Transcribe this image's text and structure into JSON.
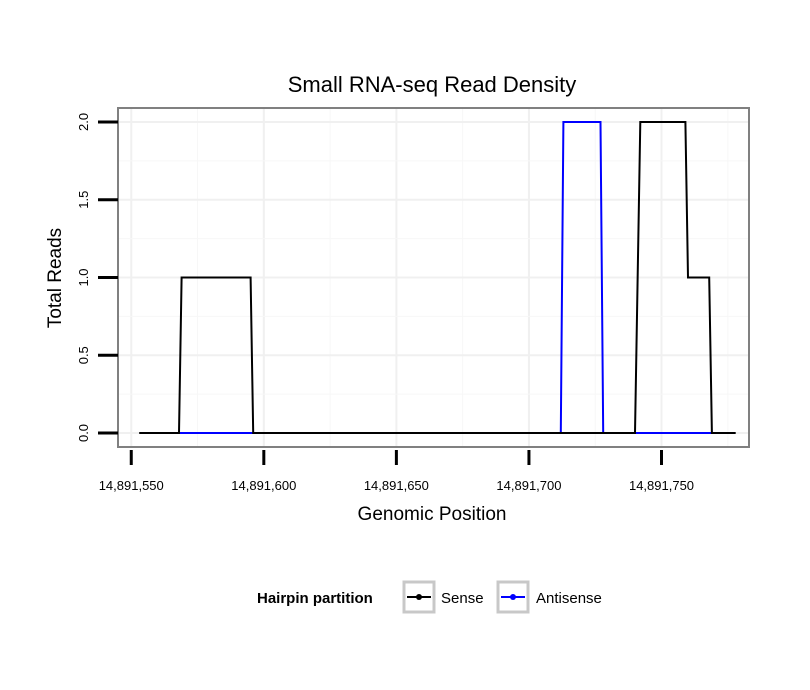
{
  "chart_data": {
    "type": "line",
    "title": "Small RNA-seq Read Density",
    "xlabel": "Genomic Position",
    "ylabel": "Total Reads",
    "xlim": [
      14891545,
      14891783
    ],
    "ylim": [
      -0.09,
      2.09
    ],
    "x_ticks": [
      14891550,
      14891600,
      14891650,
      14891700,
      14891750
    ],
    "x_tick_labels": [
      "14,891,550",
      "14,891,600",
      "14,891,650",
      "14,891,700",
      "14,891,750"
    ],
    "y_ticks": [
      0,
      0.5,
      1,
      1.5,
      2
    ],
    "y_tick_labels": [
      "0.0",
      "0.5",
      "1.0",
      "1.5",
      "2.0"
    ],
    "grid": true,
    "legend": {
      "title": "Hairpin partition",
      "position": "bottom"
    },
    "series": [
      {
        "name": "Sense",
        "color": "#000000",
        "x": [
          14891553,
          14891568,
          14891569,
          14891595,
          14891596,
          14891740,
          14891742,
          14891759,
          14891760,
          14891768,
          14891769,
          14891778
        ],
        "y": [
          0,
          0,
          1,
          1,
          0,
          0,
          2,
          2,
          1,
          1,
          0,
          0
        ]
      },
      {
        "name": "Antisense",
        "color": "#0000ff",
        "x": [
          14891568,
          14891596,
          14891712,
          14891713,
          14891727,
          14891728,
          14891741,
          14891769
        ],
        "y": [
          0,
          0,
          0,
          2,
          2,
          0,
          0,
          0
        ]
      }
    ]
  }
}
